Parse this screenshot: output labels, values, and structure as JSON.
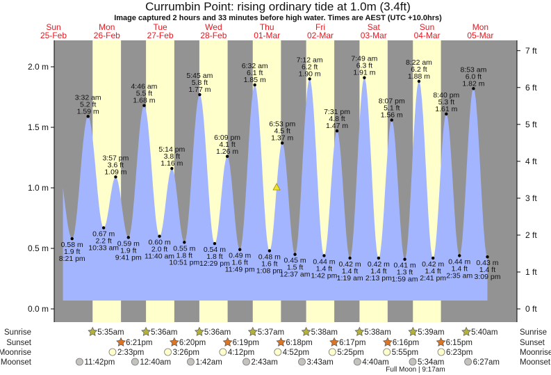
{
  "header": {
    "title": "Currumbin Point: rising  ordinary tide at 1.0m (3.4ft)",
    "subtitle": "Image captured 2 hours and 33 minutes before high water. Times are AEST (UTC +10.0hrs)"
  },
  "colors": {
    "night": "#939393",
    "day": "#ffffcc",
    "water": "#a3b5ff",
    "day_label": "#e8141c",
    "sunrise": "#b5b23a",
    "sunset": "#d9762a",
    "moonrise": "#ffffcc",
    "moonset": "#c4c2bc"
  },
  "chart_data": {
    "type": "area",
    "days": [
      {
        "dow": "Sun",
        "date": "25-Feb"
      },
      {
        "dow": "Mon",
        "date": "26-Feb"
      },
      {
        "dow": "Tue",
        "date": "27-Feb"
      },
      {
        "dow": "Wed",
        "date": "28-Feb"
      },
      {
        "dow": "Thu",
        "date": "01-Mar"
      },
      {
        "dow": "Fri",
        "date": "02-Mar"
      },
      {
        "dow": "Sat",
        "date": "03-Mar"
      },
      {
        "dow": "Sun",
        "date": "04-Mar"
      },
      {
        "dow": "Mon",
        "date": "05-Mar"
      }
    ],
    "y_left": {
      "unit": "m",
      "ylim": [
        0,
        2.2
      ],
      "ticks": [
        "0.0 m",
        "0.5 m",
        "1.0 m",
        "1.5 m",
        "2.0 m"
      ],
      "tick_values": [
        0,
        0.5,
        1.0,
        1.5,
        2.0
      ]
    },
    "y_right": {
      "unit": "ft",
      "ticks": [
        "0 ft",
        "1 ft",
        "2 ft",
        "3 ft",
        "4 ft",
        "5 ft",
        "6 ft",
        "7 ft"
      ],
      "tick_values": [
        0,
        1,
        2,
        3,
        4,
        5,
        6,
        7
      ]
    },
    "extremes": [
      {
        "type": "low",
        "day": "25-Feb",
        "time": "8:21 pm",
        "m": "0.58 m",
        "ft": "1.9 ft",
        "value": 0.58
      },
      {
        "type": "high",
        "day": "26-Feb",
        "time": "3:32 am",
        "m": "1.59 m",
        "ft": "5.2 ft",
        "value": 1.59
      },
      {
        "type": "low",
        "day": "26-Feb",
        "time": "10:33 am",
        "m": "0.67 m",
        "ft": "2.2 ft",
        "value": 0.67
      },
      {
        "type": "high",
        "day": "26-Feb",
        "time": "3:57 pm",
        "m": "1.09 m",
        "ft": "3.6 ft",
        "value": 1.09
      },
      {
        "type": "low",
        "day": "26-Feb",
        "time": "9:41 pm",
        "m": "0.59 m",
        "ft": "1.9 ft",
        "value": 0.59
      },
      {
        "type": "high",
        "day": "27-Feb",
        "time": "4:46 am",
        "m": "1.68 m",
        "ft": "5.5 ft",
        "value": 1.68
      },
      {
        "type": "low",
        "day": "27-Feb",
        "time": "11:40 am",
        "m": "0.60 m",
        "ft": "2.0 ft",
        "value": 0.6
      },
      {
        "type": "high",
        "day": "27-Feb",
        "time": "5:14 pm",
        "m": "1.16 m",
        "ft": "3.8 ft",
        "value": 1.16
      },
      {
        "type": "low",
        "day": "27-Feb",
        "time": "10:51 pm",
        "m": "0.55 m",
        "ft": "1.8 ft",
        "value": 0.55
      },
      {
        "type": "high",
        "day": "28-Feb",
        "time": "5:45 am",
        "m": "1.77 m",
        "ft": "5.8 ft",
        "value": 1.77
      },
      {
        "type": "low",
        "day": "28-Feb",
        "time": "12:29 pm",
        "m": "0.54 m",
        "ft": "1.8 ft",
        "value": 0.54
      },
      {
        "type": "high",
        "day": "28-Feb",
        "time": "6:09 pm",
        "m": "1.26 m",
        "ft": "4.1 ft",
        "value": 1.26
      },
      {
        "type": "low",
        "day": "28-Feb",
        "time": "11:49 pm",
        "m": "0.49 m",
        "ft": "1.6 ft",
        "value": 0.49
      },
      {
        "type": "high",
        "day": "01-Mar",
        "time": "6:32 am",
        "m": "1.85 m",
        "ft": "6.1 ft",
        "value": 1.85
      },
      {
        "type": "low",
        "day": "01-Mar",
        "time": "1:08 pm",
        "m": "0.48 m",
        "ft": "1.6 ft",
        "value": 0.48
      },
      {
        "type": "high",
        "day": "01-Mar",
        "time": "6:53 pm",
        "m": "1.37 m",
        "ft": "4.5 ft",
        "value": 1.37
      },
      {
        "type": "low",
        "day": "02-Mar",
        "time": "12:37 am",
        "m": "0.45 m",
        "ft": "1.5 ft",
        "value": 0.45
      },
      {
        "type": "high",
        "day": "02-Mar",
        "time": "7:12 am",
        "m": "1.90 m",
        "ft": "6.2 ft",
        "value": 1.9
      },
      {
        "type": "low",
        "day": "02-Mar",
        "time": "1:42 pm",
        "m": "0.44 m",
        "ft": "1.4 ft",
        "value": 0.44
      },
      {
        "type": "high",
        "day": "02-Mar",
        "time": "7:31 pm",
        "m": "1.47 m",
        "ft": "4.8 ft",
        "value": 1.47
      },
      {
        "type": "low",
        "day": "03-Mar",
        "time": "1:19 am",
        "m": "0.42 m",
        "ft": "1.4 ft",
        "value": 0.42
      },
      {
        "type": "high",
        "day": "03-Mar",
        "time": "7:49 am",
        "m": "1.91 m",
        "ft": "6.3 ft",
        "value": 1.91
      },
      {
        "type": "low",
        "day": "03-Mar",
        "time": "2:13 pm",
        "m": "0.42 m",
        "ft": "1.4 ft",
        "value": 0.42
      },
      {
        "type": "high",
        "day": "03-Mar",
        "time": "8:07 pm",
        "m": "1.56 m",
        "ft": "5.1 ft",
        "value": 1.56
      },
      {
        "type": "low",
        "day": "04-Mar",
        "time": "1:59 am",
        "m": "0.41 m",
        "ft": "1.3 ft",
        "value": 0.41
      },
      {
        "type": "high",
        "day": "04-Mar",
        "time": "8:22 am",
        "m": "1.88 m",
        "ft": "6.2 ft",
        "value": 1.88
      },
      {
        "type": "low",
        "day": "04-Mar",
        "time": "2:41 pm",
        "m": "0.42 m",
        "ft": "1.4 ft",
        "value": 0.42
      },
      {
        "type": "high",
        "day": "04-Mar",
        "time": "8:40 pm",
        "m": "1.61 m",
        "ft": "5.3 ft",
        "value": 1.61
      },
      {
        "type": "low",
        "day": "05-Mar",
        "time": "2:35 am",
        "m": "0.44 m",
        "ft": "1.4 ft",
        "value": 0.44
      },
      {
        "type": "high",
        "day": "05-Mar",
        "time": "8:53 am",
        "m": "1.82 m",
        "ft": "6.0 ft",
        "value": 1.82
      },
      {
        "type": "low",
        "day": "05-Mar",
        "time": "3:09 pm",
        "m": "0.43 m",
        "ft": "1.4 ft",
        "value": 0.43
      }
    ],
    "current": {
      "day": "01-Mar",
      "time": "4:20 pm",
      "value": 1.0
    },
    "sun_moon": {
      "labels": {
        "sunrise": "Sunrise",
        "sunset": "Sunset",
        "moonrise": "Moonrise",
        "moonset": "Moonset"
      },
      "sunrise": [
        {
          "day": "26-Feb",
          "time": "5:35am"
        },
        {
          "day": "27-Feb",
          "time": "5:36am"
        },
        {
          "day": "28-Feb",
          "time": "5:36am"
        },
        {
          "day": "01-Mar",
          "time": "5:37am"
        },
        {
          "day": "02-Mar",
          "time": "5:38am"
        },
        {
          "day": "03-Mar",
          "time": "5:38am"
        },
        {
          "day": "04-Mar",
          "time": "5:39am"
        },
        {
          "day": "05-Mar",
          "time": "5:40am"
        }
      ],
      "sunset": [
        {
          "day": "26-Feb",
          "time": "6:21pm"
        },
        {
          "day": "27-Feb",
          "time": "6:20pm"
        },
        {
          "day": "28-Feb",
          "time": "6:19pm"
        },
        {
          "day": "01-Mar",
          "time": "6:18pm"
        },
        {
          "day": "02-Mar",
          "time": "6:17pm"
        },
        {
          "day": "03-Mar",
          "time": "6:16pm"
        },
        {
          "day": "04-Mar",
          "time": "6:15pm"
        }
      ],
      "moonrise": [
        {
          "day": "26-Feb",
          "time": "2:33pm"
        },
        {
          "day": "27-Feb",
          "time": "3:26pm"
        },
        {
          "day": "28-Feb",
          "time": "4:12pm"
        },
        {
          "day": "01-Mar",
          "time": "4:52pm"
        },
        {
          "day": "02-Mar",
          "time": "5:25pm"
        },
        {
          "day": "03-Mar",
          "time": "5:55pm"
        },
        {
          "day": "04-Mar",
          "time": "6:23pm"
        }
      ],
      "moonset": [
        {
          "day": "25-Feb",
          "time": "11:42pm"
        },
        {
          "day": "27-Feb",
          "time": "12:40am"
        },
        {
          "day": "28-Feb",
          "time": "1:42am"
        },
        {
          "day": "01-Mar",
          "time": "2:43am"
        },
        {
          "day": "02-Mar",
          "time": "3:43am"
        },
        {
          "day": "03-Mar",
          "time": "4:40am"
        },
        {
          "day": "04-Mar",
          "time": "5:34am"
        },
        {
          "day": "05-Mar",
          "time": "6:27am"
        }
      ],
      "moon_phase": "Full Moon | 9:17am"
    }
  }
}
